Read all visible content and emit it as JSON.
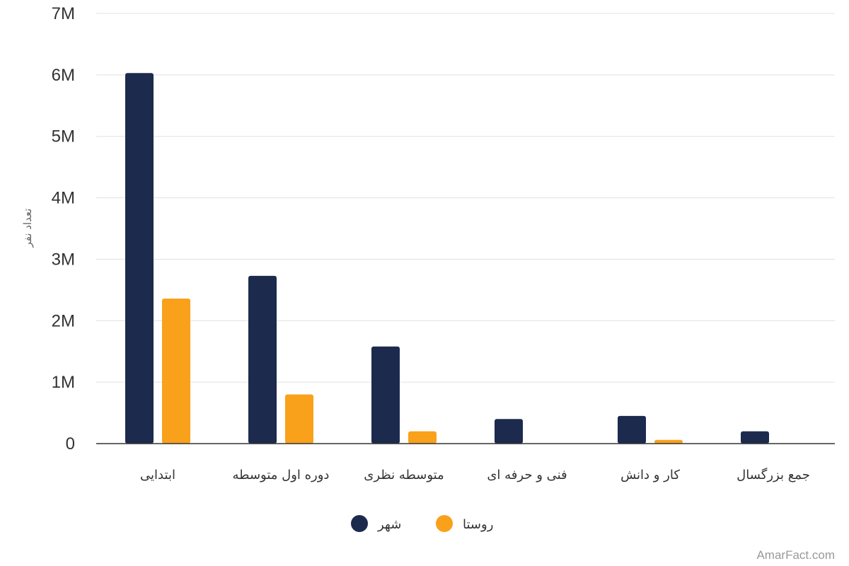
{
  "chart_data": {
    "type": "bar",
    "categories": [
      "ابتدایی",
      "دوره اول متوسطه",
      "متوسطه نظری",
      "فنی و حرفه ای",
      "کار و دانش",
      "جمع بزرگسال"
    ],
    "series": [
      {
        "name": "شهر",
        "color": "#1c2a4d",
        "values": [
          6030000,
          2730000,
          1580000,
          400000,
          450000,
          200000
        ]
      },
      {
        "name": "روستا",
        "color": "#f9a11b",
        "values": [
          2360000,
          800000,
          200000,
          0,
          60000,
          0
        ]
      }
    ],
    "ylabel": "تعداد نفر",
    "ylim": [
      0,
      7000000
    ],
    "yticks": [
      {
        "value": 0,
        "label": "0"
      },
      {
        "value": 1000000,
        "label": "1M"
      },
      {
        "value": 2000000,
        "label": "2M"
      },
      {
        "value": 3000000,
        "label": "3M"
      },
      {
        "value": 4000000,
        "label": "4M"
      },
      {
        "value": 5000000,
        "label": "5M"
      },
      {
        "value": 6000000,
        "label": "6M"
      },
      {
        "value": 7000000,
        "label": "7M"
      }
    ],
    "grid": true,
    "legend_position": "bottom-center"
  },
  "credit": "AmarFact.com"
}
